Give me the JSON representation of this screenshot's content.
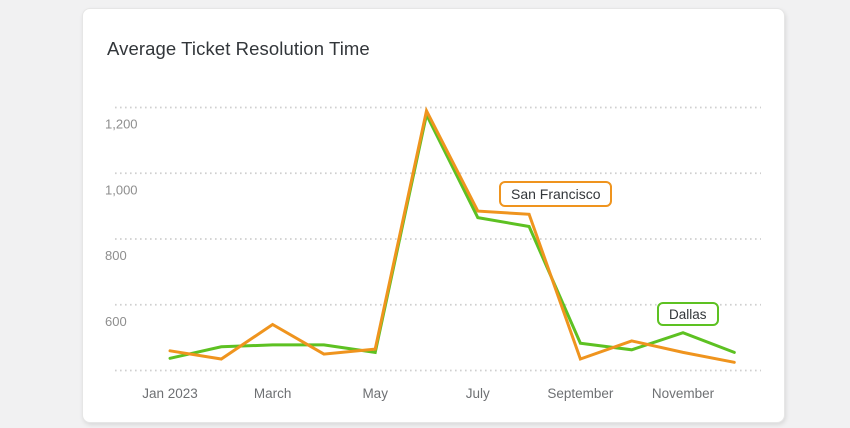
{
  "card": {
    "title": "Average Ticket Resolution Time"
  },
  "colors": {
    "san_francisco": "#ef941e",
    "dallas": "#5dc122",
    "card_background": "#ffffff",
    "page_background": "#f1f1f2",
    "gridline": "#cfcfcf",
    "y_tick_text": "#8e8e8e",
    "x_tick_text": "#6e7073",
    "title_text": "#32363a"
  },
  "chart_data": {
    "type": "line",
    "title": "Average Ticket Resolution Time",
    "n_points": 12,
    "x_tick_labels": [
      "Jan 2023",
      "March",
      "May",
      "July",
      "September",
      "November"
    ],
    "x_tick_indices": [
      0,
      2,
      4,
      6,
      8,
      10
    ],
    "y_axis": {
      "min": 400,
      "max": 1200,
      "grid_step": 200,
      "grid_values": [
        400,
        600,
        800,
        1000,
        1200
      ],
      "tick_labels": [
        {
          "value": 600,
          "label": "600"
        },
        {
          "value": 800,
          "label": "800"
        },
        {
          "value": 1000,
          "label": "1,000"
        },
        {
          "value": 1200,
          "label": "1,200"
        }
      ]
    },
    "grid_style": "dotted",
    "legend_position": "inline-labels",
    "series": [
      {
        "name": "San Francisco",
        "color": "#ef941e",
        "values": [
          460,
          435,
          540,
          450,
          465,
          1190,
          885,
          875,
          435,
          490,
          455,
          425
        ]
      },
      {
        "name": "Dallas",
        "color": "#5dc122",
        "values": [
          437,
          472,
          478,
          478,
          455,
          1178,
          865,
          838,
          483,
          463,
          515,
          455
        ]
      }
    ]
  }
}
